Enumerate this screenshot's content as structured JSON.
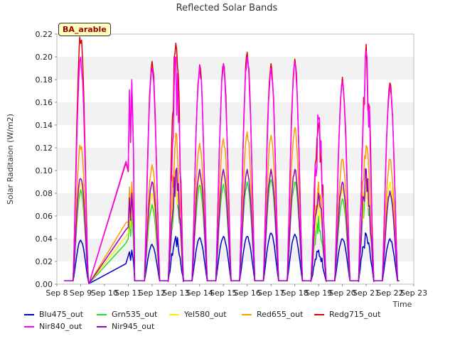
{
  "chart_data": {
    "type": "line",
    "title": "Reflected Solar Bands",
    "xlabel": "Time",
    "ylabel": "Solar Raditaion (W/m2)",
    "badge": "BA_arable",
    "ylim": [
      0,
      0.22
    ],
    "xlim": [
      8,
      23
    ],
    "y_ticks": [
      "0.00",
      "0.02",
      "0.04",
      "0.06",
      "0.08",
      "0.10",
      "0.12",
      "0.14",
      "0.16",
      "0.18",
      "0.20",
      "0.22"
    ],
    "x_ticks": [
      "Sep 8",
      "Sep 9",
      "Sep 10",
      "Sep 11",
      "Sep 12",
      "Sep 13",
      "Sep 14",
      "Sep 15",
      "Sep 16",
      "Sep 17",
      "Sep 18",
      "Sep 19",
      "Sep 20",
      "Sep 21",
      "Sep 22",
      "Sep 23"
    ],
    "days": [
      9,
      11,
      12,
      13,
      14,
      15,
      16,
      17,
      18,
      19,
      20,
      21,
      22
    ],
    "series": [
      {
        "name": "Blu475_out",
        "color": "#0000cc",
        "peaks": [
          0.039,
          0.03,
          0.035,
          0.042,
          0.041,
          0.042,
          0.042,
          0.045,
          0.044,
          0.03,
          0.04,
          0.044,
          0.04
        ]
      },
      {
        "name": "Grn535_out",
        "color": "#22dd22",
        "peaks": [
          0.082,
          0.06,
          0.07,
          0.09,
          0.087,
          0.088,
          0.09,
          0.092,
          0.09,
          0.06,
          0.075,
          0.088,
          0.08
        ]
      },
      {
        "name": "Yel580_out",
        "color": "#ffee00",
        "peaks": [
          0.09,
          0.07,
          0.08,
          0.1,
          0.097,
          0.098,
          0.1,
          0.102,
          0.1,
          0.07,
          0.085,
          0.098,
          0.09
        ]
      },
      {
        "name": "Red655_out",
        "color": "#ff9900",
        "peaks": [
          0.123,
          0.09,
          0.105,
          0.133,
          0.124,
          0.128,
          0.134,
          0.131,
          0.138,
          0.09,
          0.11,
          0.122,
          0.11
        ]
      },
      {
        "name": "Redg715_out",
        "color": "#dd0000",
        "peaks": [
          0.22,
          0.178,
          0.196,
          0.212,
          0.193,
          0.194,
          0.204,
          0.194,
          0.198,
          0.14,
          0.182,
          0.211,
          0.177
        ]
      },
      {
        "name": "Nir840_out",
        "color": "#ff00ff",
        "peaks": [
          0.199,
          0.18,
          0.19,
          0.2,
          0.192,
          0.193,
          0.2,
          0.19,
          0.195,
          0.145,
          0.178,
          0.205,
          0.175
        ]
      },
      {
        "name": "Nir945_out",
        "color": "#9900cc",
        "peaks": [
          0.096,
          0.08,
          0.09,
          0.1,
          0.101,
          0.101,
          0.101,
          0.101,
          0.101,
          0.08,
          0.09,
          0.101,
          0.082
        ]
      }
    ]
  }
}
